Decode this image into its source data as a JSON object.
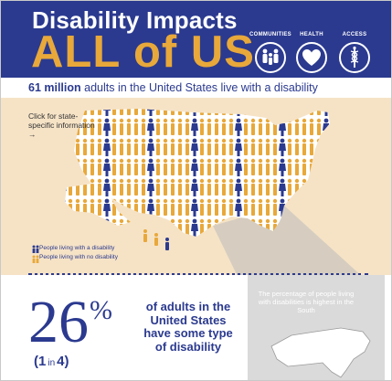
{
  "header": {
    "title_line1": "Disability Impacts",
    "title_line2": "ALL of US",
    "icons": [
      {
        "label": "COMMUNITIES",
        "icon": "people-group-icon"
      },
      {
        "label": "HEALTH",
        "icon": "heart-icon"
      },
      {
        "label": "ACCESS",
        "icon": "caduceus-icon"
      }
    ]
  },
  "subtitle": {
    "bold": "61 million",
    "rest": " adults in the United States live with a disability"
  },
  "map": {
    "click_prompt": "Click for state-specific information →",
    "legend": [
      {
        "label": "People living with a disability",
        "color": "#2b3a8f"
      },
      {
        "label": "People living with no disability",
        "color": "#e8a83a"
      }
    ],
    "south_note": "The percentage of people living with disabilities is highest in the South"
  },
  "stat": {
    "percent": "26",
    "percent_sign": "%",
    "ratio_open": "(1",
    "ratio_in": "in",
    "ratio_close": "4)",
    "description": "of adults in the United States have some type of disability"
  },
  "colors": {
    "navy": "#2b3a8f",
    "gold": "#e8a83a",
    "panel": "#f6e3c6"
  }
}
